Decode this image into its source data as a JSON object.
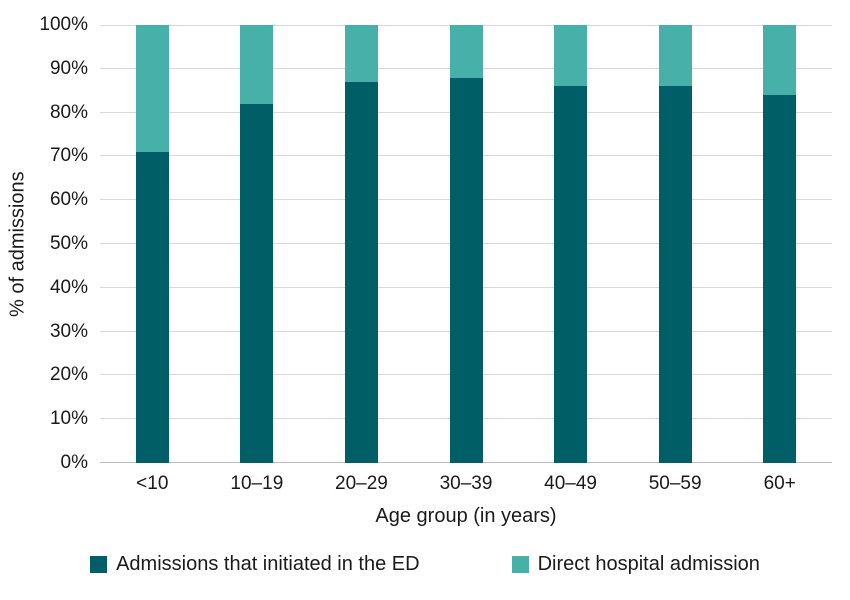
{
  "figure": {
    "background_color": "#ffffff",
    "text_color": "#1a1a1a"
  },
  "chart_data": {
    "type": "bar",
    "stacked": true,
    "title": "",
    "categories": [
      "<10",
      "10–19",
      "20–29",
      "30–39",
      "40–49",
      "50–59",
      "60+"
    ],
    "series": [
      {
        "key": "ed",
        "name": "Admissions that initiated in the ED",
        "color": "#005f66",
        "values": [
          71,
          82,
          87,
          88,
          86,
          86,
          84
        ]
      },
      {
        "key": "direct",
        "name": "Direct hospital admission",
        "color": "#47b1a9",
        "values": [
          29,
          18,
          13,
          12,
          14,
          14,
          16
        ]
      }
    ],
    "xlabel": "Age group (in years)",
    "ylabel": "% of admissions",
    "ylim": [
      0,
      100
    ],
    "ytick_step": 10,
    "yticks": [
      "0%",
      "10%",
      "20%",
      "30%",
      "40%",
      "50%",
      "60%",
      "70%",
      "80%",
      "90%",
      "100%"
    ],
    "grid": true,
    "gridline_color": "#d9d9d9",
    "axis_line_color": "#bfbfbf",
    "legend_position": "bottom"
  }
}
